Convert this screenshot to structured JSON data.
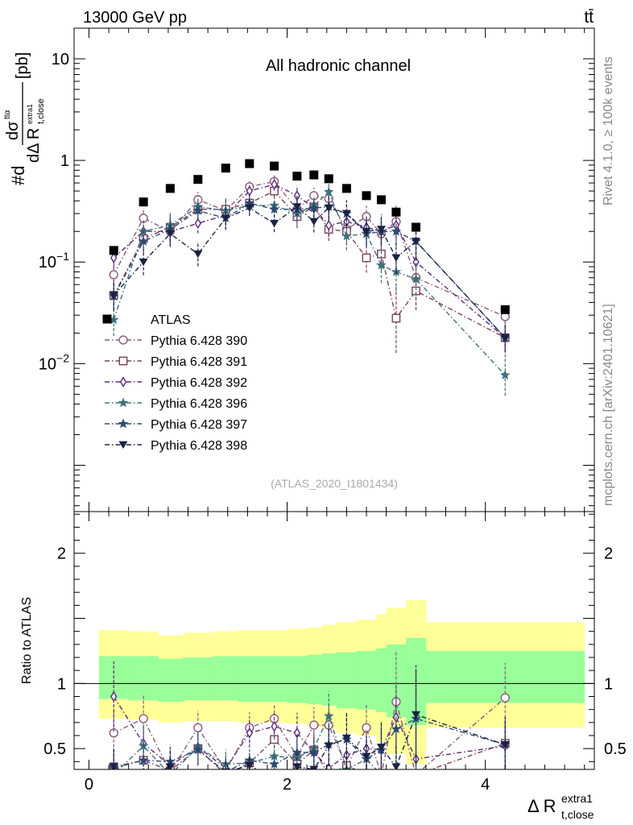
{
  "header": {
    "energy": "13000 GeV pp",
    "process": "tt̄",
    "channel": "All hadronic channel",
    "watermark": "(ATLAS_2020_I1801434)",
    "rivet": "Rivet 4.1.0, ≥ 100k events",
    "mcplots": "mcplots.cern.ch [arXiv:2401.10621]"
  },
  "labels": {
    "ylabel_top": "#d dσ^{ttα} / dΔ R_{t,close}^{extra1} [pb]",
    "ylabel_bottom": "Ratio to ATLAS",
    "xlabel": "Δ R_{t,close}^{extra1}"
  },
  "chart_data": {
    "type": "scatter",
    "title": "All hadronic channel",
    "x_edges": [
      0.1,
      0.4,
      0.7,
      0.95,
      1.25,
      1.5,
      1.75,
      2.0,
      2.2,
      2.35,
      2.5,
      2.7,
      2.9,
      3.0,
      3.2,
      3.4,
      5.0
    ],
    "xlim": [
      -0.15,
      5.1
    ],
    "xticks": [
      0,
      2,
      4
    ],
    "top": {
      "ylim": [
        0.00035,
        20
      ],
      "yscale": "log",
      "yticks": [
        {
          "v": 10,
          "label": "10"
        },
        {
          "v": 1,
          "label": "1"
        },
        {
          "v": 0.1,
          "label": "10^{-1}"
        },
        {
          "v": 0.01,
          "label": "10^{-2}"
        }
      ]
    },
    "bottom": {
      "ylim": [
        0.34,
        2.32
      ],
      "yticks": [
        0.5,
        1,
        2
      ],
      "bands": {
        "green_upper": [
          1.21,
          1.21,
          1.19,
          1.2,
          1.21,
          1.21,
          1.21,
          1.21,
          1.22,
          1.23,
          1.24,
          1.25,
          1.27,
          1.3,
          1.35,
          1.25
        ],
        "green_lower": [
          0.88,
          0.87,
          0.86,
          0.87,
          0.87,
          0.86,
          0.86,
          0.85,
          0.84,
          0.83,
          0.81,
          0.8,
          0.78,
          0.74,
          0.68,
          0.85
        ],
        "yellow_upper": [
          1.41,
          1.4,
          1.37,
          1.39,
          1.4,
          1.41,
          1.41,
          1.42,
          1.43,
          1.45,
          1.47,
          1.49,
          1.53,
          1.58,
          1.64,
          1.47
        ],
        "yellow_lower": [
          0.73,
          0.72,
          0.7,
          0.71,
          0.71,
          0.7,
          0.7,
          0.69,
          0.67,
          0.65,
          0.62,
          0.6,
          0.55,
          0.46,
          0.38,
          0.66
        ]
      }
    },
    "atlas": {
      "name": "ATLAS",
      "x": [
        0.25,
        0.55,
        0.82,
        1.1,
        1.38,
        1.62,
        1.87,
        2.1,
        2.27,
        2.42,
        2.6,
        2.8,
        2.95,
        3.1,
        3.3,
        4.2
      ],
      "y": [
        0.13,
        0.39,
        0.53,
        0.65,
        0.84,
        0.93,
        0.88,
        0.7,
        0.72,
        0.66,
        0.53,
        0.45,
        0.41,
        0.31,
        0.22,
        0.034
      ]
    },
    "series": [
      {
        "name": "Pythia 6.428 390",
        "color": "#8a5a7a",
        "marker": "circle",
        "y": [
          0.075,
          0.27,
          0.2,
          0.41,
          0.32,
          0.55,
          0.62,
          0.33,
          0.45,
          0.42,
          0.21,
          0.28,
          0.19,
          0.25,
          0.07,
          0.029
        ],
        "err": [
          0.3,
          0.25,
          0.35,
          0.2,
          0.3,
          0.18,
          0.15,
          0.3,
          0.2,
          0.25,
          0.35,
          0.28,
          0.38,
          0.45,
          0.5,
          0.3
        ],
        "ratio": [
          0.62,
          0.73,
          0.32,
          0.66,
          0.33,
          0.66,
          0.73,
          0.44,
          0.68,
          0.68,
          0.36,
          0.66,
          0.3,
          0.86,
          0.3,
          0.89
        ]
      },
      {
        "name": "Pythia 6.428 391",
        "color": "#7a4058",
        "marker": "square",
        "y": [
          0.047,
          0.17,
          0.22,
          0.33,
          0.33,
          0.38,
          0.5,
          0.28,
          0.35,
          0.21,
          0.2,
          0.11,
          0.12,
          0.028,
          0.052,
          0.018
        ],
        "err": [
          0.35,
          0.3,
          0.35,
          0.25,
          0.3,
          0.2,
          0.18,
          0.3,
          0.25,
          0.3,
          0.35,
          0.4,
          0.45,
          1.2,
          0.55,
          0.35
        ],
        "ratio": [
          0.36,
          0.41,
          0.33,
          0.5,
          0.3,
          0.39,
          0.57,
          0.38,
          0.49,
          0.3,
          0.37,
          0.3,
          0.3,
          0.3,
          0.3,
          0.54
        ]
      },
      {
        "name": "Pythia 6.428 392",
        "color": "#5a2a7a",
        "marker": "diamond",
        "y": [
          0.11,
          0.2,
          0.2,
          0.24,
          0.29,
          0.5,
          0.58,
          0.45,
          0.34,
          0.23,
          0.25,
          0.22,
          0.2,
          0.23,
          0.1,
          0.018
        ],
        "err": [
          0.3,
          0.28,
          0.35,
          0.25,
          0.28,
          0.18,
          0.15,
          0.25,
          0.22,
          0.3,
          0.32,
          0.3,
          0.35,
          0.35,
          0.5,
          0.35
        ],
        "ratio": [
          0.9,
          0.54,
          0.37,
          0.51,
          0.35,
          0.62,
          0.67,
          0.62,
          0.47,
          0.35,
          0.45,
          0.5,
          0.49,
          0.74,
          0.42,
          0.52
        ]
      },
      {
        "name": "Pythia 6.428 396",
        "color": "#3e7078",
        "marker": "star",
        "y": [
          0.027,
          0.2,
          0.23,
          0.35,
          0.32,
          0.36,
          0.36,
          0.3,
          0.36,
          0.49,
          0.18,
          0.19,
          0.093,
          0.08,
          0.068,
          0.0077
        ],
        "err": [
          0.45,
          0.3,
          0.33,
          0.25,
          0.3,
          0.2,
          0.2,
          0.3,
          0.25,
          0.25,
          0.38,
          0.35,
          0.5,
          0.55,
          0.6,
          0.6
        ],
        "ratio": [
          0.3,
          0.52,
          0.3,
          0.51,
          0.38,
          0.39,
          0.44,
          0.43,
          0.5,
          0.75,
          0.34,
          0.42,
          0.3,
          0.3,
          0.3,
          0.3
        ]
      },
      {
        "name": "Pythia 6.428 397",
        "color": "#2a4a70",
        "marker": "star",
        "y": [
          0.046,
          0.16,
          0.21,
          0.32,
          0.27,
          0.38,
          0.33,
          0.33,
          0.34,
          0.35,
          0.3,
          0.19,
          0.2,
          0.2,
          0.16,
          0.018
        ],
        "err": [
          0.4,
          0.3,
          0.33,
          0.25,
          0.3,
          0.2,
          0.2,
          0.3,
          0.25,
          0.3,
          0.35,
          0.35,
          0.4,
          0.4,
          0.5,
          0.4
        ],
        "ratio": [
          0.35,
          0.41,
          0.4,
          0.49,
          0.32,
          0.41,
          0.38,
          0.47,
          0.47,
          0.53,
          0.57,
          0.42,
          0.49,
          0.65,
          0.73,
          0.53
        ]
      },
      {
        "name": "Pythia 6.428 398",
        "color": "#1a2244",
        "marker": "triangle-down",
        "y": [
          0.047,
          0.1,
          0.19,
          0.12,
          0.27,
          0.34,
          0.24,
          0.35,
          0.25,
          0.34,
          0.3,
          0.2,
          0.21,
          0.11,
          0.16,
          0.018
        ],
        "err": [
          0.4,
          0.35,
          0.35,
          0.32,
          0.3,
          0.2,
          0.22,
          0.28,
          0.28,
          0.3,
          0.35,
          0.35,
          0.4,
          0.45,
          0.5,
          0.4
        ],
        "ratio": [
          0.36,
          0.27,
          0.36,
          0.19,
          0.32,
          0.37,
          0.27,
          0.36,
          0.34,
          0.52,
          0.58,
          0.44,
          0.51,
          0.36,
          0.76,
          0.53
        ]
      }
    ]
  }
}
